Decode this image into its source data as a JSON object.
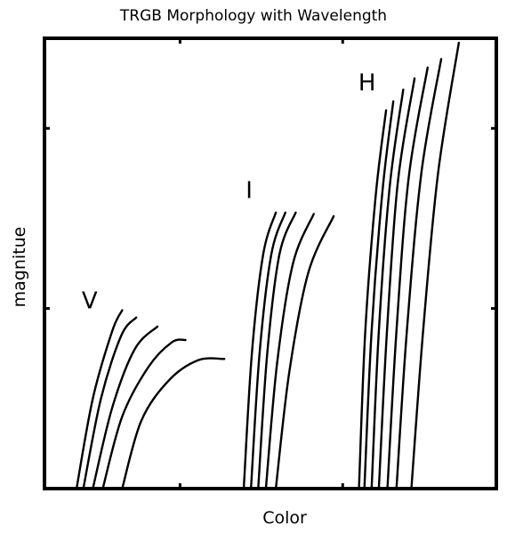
{
  "chart_data": {
    "type": "line",
    "title": "TRGB Morphology with Wavelength",
    "xlabel": "Color",
    "ylabel": "magnitue",
    "xlim": [
      0,
      100
    ],
    "ylim": [
      0,
      100
    ],
    "grid": false,
    "legend": "none",
    "ticks": {
      "x": [
        30,
        66
      ],
      "y": [
        40,
        80
      ],
      "x_labels": [],
      "y_labels": []
    },
    "series_groups": [
      {
        "label": "V",
        "label_position": [
          10,
          40
        ],
        "curves": [
          [
            [
              7.1,
              0
            ],
            [
              10.7,
              20
            ],
            [
              15.0,
              35
            ],
            [
              17.2,
              39.6
            ]
          ],
          [
            [
              8.6,
              0
            ],
            [
              12.5,
              20
            ],
            [
              17.0,
              34
            ],
            [
              20.3,
              38.0
            ]
          ],
          [
            [
              10.7,
              0
            ],
            [
              15.0,
              18
            ],
            [
              20.0,
              31
            ],
            [
              25.0,
              36.0
            ]
          ],
          [
            [
              12.9,
              0
            ],
            [
              17.2,
              16
            ],
            [
              23.0,
              27
            ],
            [
              28.2,
              32.5
            ],
            [
              31.2,
              33.0
            ]
          ],
          [
            [
              17.2,
              0
            ],
            [
              21.4,
              15
            ],
            [
              27.5,
              24
            ],
            [
              34.0,
              28.5
            ],
            [
              39.8,
              28.8
            ]
          ]
        ]
      },
      {
        "label": "I",
        "label_position": [
          45.3,
          64.5
        ],
        "curves": [
          [
            [
              44.1,
              0
            ],
            [
              45.9,
              30
            ],
            [
              48.4,
              52
            ],
            [
              51.2,
              61.3
            ]
          ],
          [
            [
              45.7,
              0
            ],
            [
              47.6,
              30
            ],
            [
              50.2,
              52
            ],
            [
              53.3,
              61.3
            ]
          ],
          [
            [
              47.3,
              0
            ],
            [
              49.3,
              30
            ],
            [
              52.0,
              52
            ],
            [
              55.6,
              61.3
            ]
          ],
          [
            [
              49.0,
              0
            ],
            [
              51.5,
              28
            ],
            [
              55.0,
              50
            ],
            [
              59.6,
              61.0
            ]
          ],
          [
            [
              51.2,
              0
            ],
            [
              54.2,
              26
            ],
            [
              58.4,
              48
            ],
            [
              64.0,
              60.5
            ]
          ]
        ]
      },
      {
        "label": "H",
        "label_position": [
          71.4,
          88.4
        ],
        "curves": [
          [
            [
              69.6,
              0
            ],
            [
              71.0,
              35
            ],
            [
              73.3,
              65
            ],
            [
              75.6,
              84.0
            ]
          ],
          [
            [
              70.8,
              0
            ],
            [
              72.4,
              35
            ],
            [
              74.8,
              66
            ],
            [
              77.2,
              86.0
            ]
          ],
          [
            [
              72.4,
              0
            ],
            [
              74.0,
              35
            ],
            [
              76.4,
              67
            ],
            [
              79.4,
              88.6
            ]
          ],
          [
            [
              74.0,
              0
            ],
            [
              75.8,
              35
            ],
            [
              78.2,
              68
            ],
            [
              81.9,
              91.1
            ]
          ],
          [
            [
              75.9,
              0
            ],
            [
              77.9,
              35
            ],
            [
              80.6,
              69
            ],
            [
              84.8,
              93.5
            ]
          ],
          [
            [
              77.9,
              0
            ],
            [
              80.2,
              35
            ],
            [
              83.4,
              70
            ],
            [
              87.8,
              95.4
            ]
          ],
          [
            [
              81.2,
              0
            ],
            [
              83.8,
              35
            ],
            [
              87.1,
              70
            ],
            [
              91.7,
              99.0
            ]
          ]
        ]
      }
    ]
  }
}
